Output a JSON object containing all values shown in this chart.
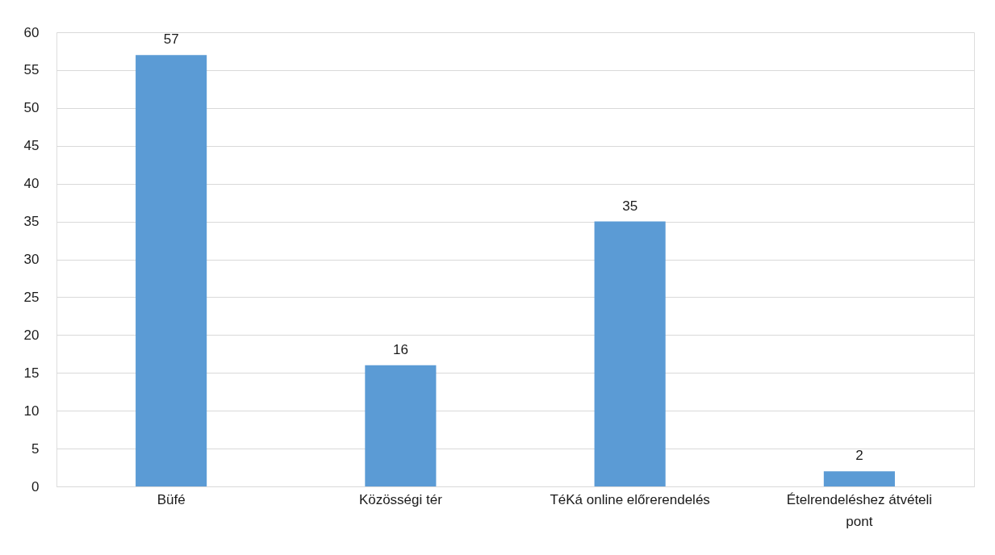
{
  "chart_data": {
    "type": "bar",
    "categories": [
      "Büfé",
      "Közösségi tér",
      "TéKá online előrerendelés",
      "Ételrendeléshez átvételi pont"
    ],
    "values": [
      57,
      16,
      35,
      2
    ],
    "color": "#5b9bd5",
    "ylim": [
      0,
      60
    ],
    "yticks": [
      0,
      5,
      10,
      15,
      20,
      25,
      30,
      35,
      40,
      45,
      50,
      55,
      60
    ],
    "grid": "y",
    "data_labels": true
  }
}
